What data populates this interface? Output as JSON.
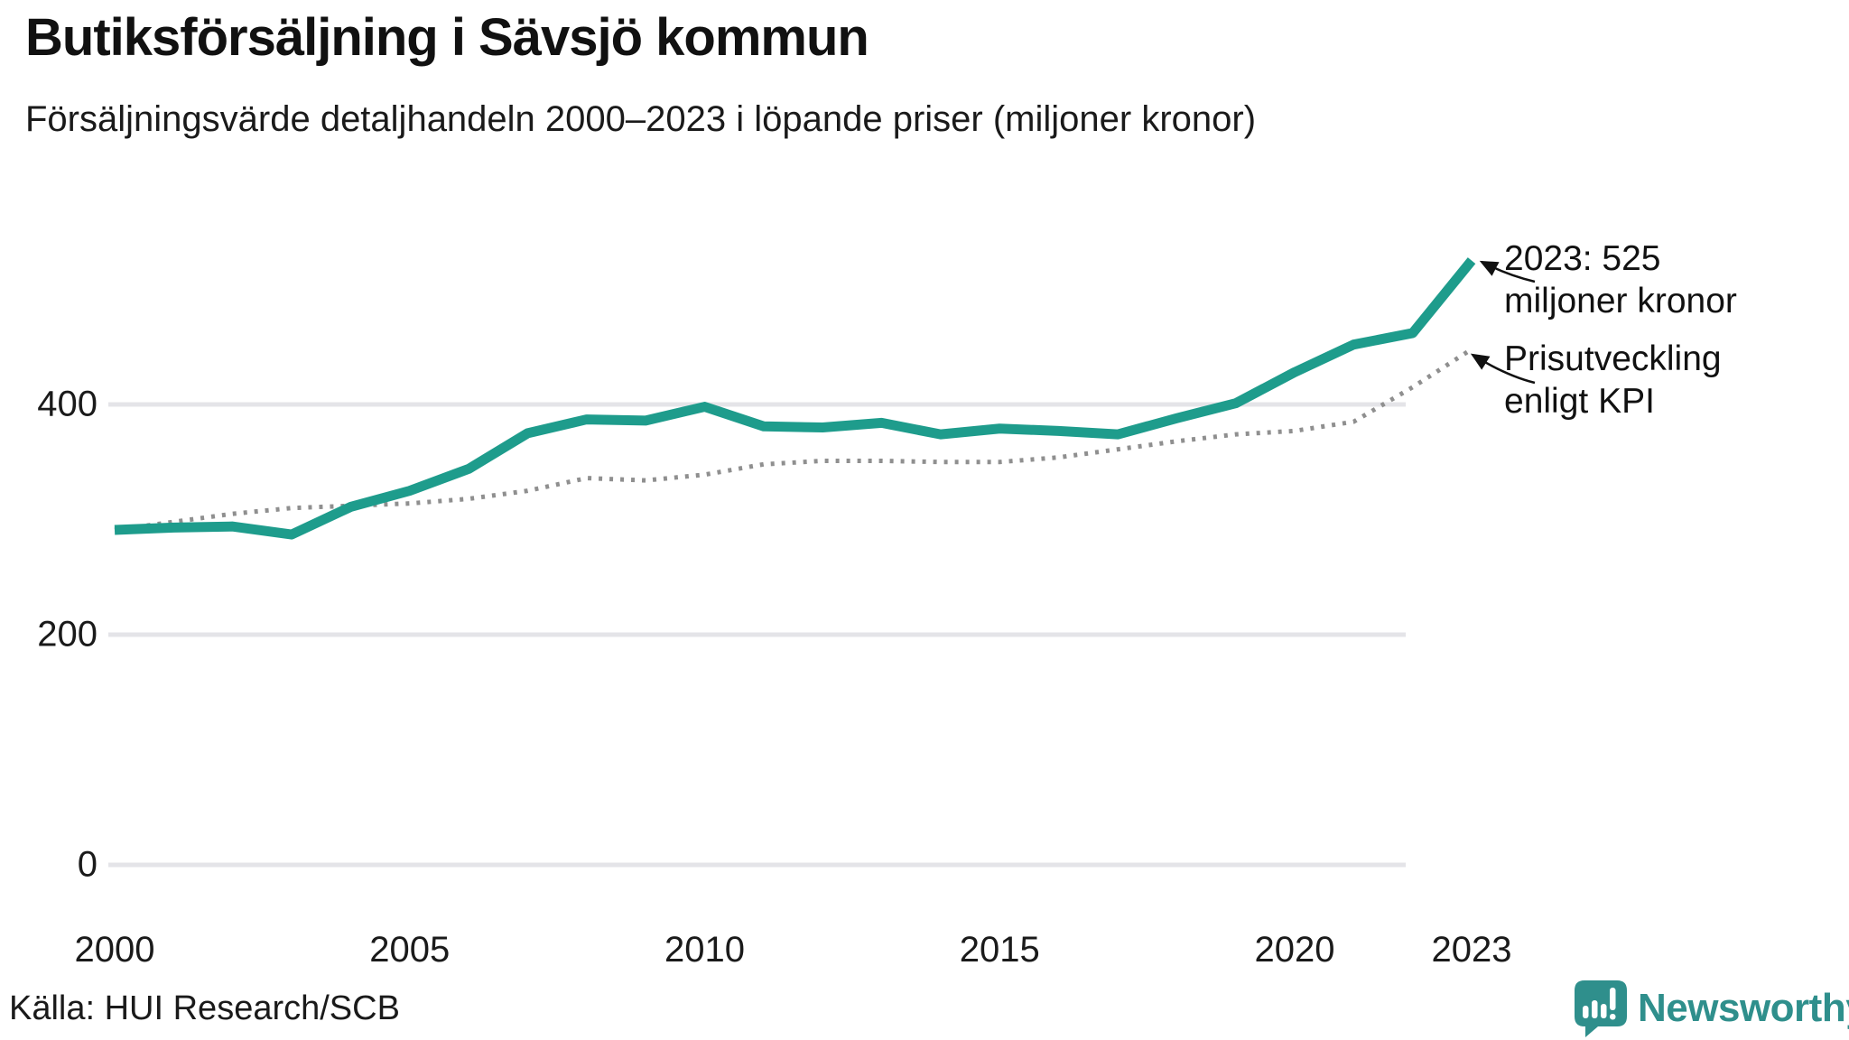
{
  "header": {
    "title": "Butiksförsäljning i Sävsjö kommun",
    "subtitle": "Försäljningsvärde detaljhandeln 2000–2023 i löpande priser (miljoner kronor)"
  },
  "annotations": {
    "latest": {
      "line1": "2023: 525",
      "line2": "miljoner kronor"
    },
    "kpi": {
      "line1": "Prisutveckling",
      "line2": "enligt KPI"
    }
  },
  "footer": {
    "source": "Källa: HUI Research/SCB",
    "logo_text": "Newsworthy"
  },
  "colors": {
    "sales_line": "#1e9c8c",
    "kpi_line": "#8f8f8f",
    "gridline": "#e4e4e8",
    "arrow": "#111111",
    "logo": "#2f8f8c"
  },
  "chart_data": {
    "type": "line",
    "title": "Butiksförsäljning i Sävsjö kommun",
    "subtitle": "Försäljningsvärde detaljhandeln 2000–2023 i löpande priser (miljoner kronor)",
    "xlabel": "",
    "ylabel": "miljoner kronor",
    "x": [
      2000,
      2001,
      2002,
      2003,
      2004,
      2005,
      2006,
      2007,
      2008,
      2009,
      2010,
      2011,
      2012,
      2013,
      2014,
      2015,
      2016,
      2017,
      2018,
      2019,
      2020,
      2021,
      2022,
      2023
    ],
    "series": [
      {
        "name": "Försäljningsvärde i löpande priser",
        "style": "solid",
        "color": "#1e9c8c",
        "values": [
          291,
          293,
          294,
          287,
          311,
          325,
          344,
          375,
          387,
          386,
          398,
          381,
          380,
          384,
          374,
          379,
          377,
          374,
          388,
          401,
          428,
          452,
          462,
          525
        ]
      },
      {
        "name": "Prisutveckling enligt KPI",
        "style": "dotted",
        "color": "#8f8f8f",
        "values": [
          291,
          298,
          305,
          310,
          312,
          314,
          318,
          325,
          336,
          334,
          339,
          348,
          351,
          351,
          350,
          350,
          354,
          361,
          368,
          374,
          377,
          385,
          415,
          448
        ]
      }
    ],
    "highlight_point": {
      "year": 2023,
      "value": 525,
      "label": "2023: 525 miljoner kronor"
    },
    "yticks": [
      "0",
      "200",
      "400"
    ],
    "xticks": [
      "2000",
      "2005",
      "2010",
      "2015",
      "2020",
      "2023"
    ],
    "ylim": [
      0,
      580
    ],
    "xlim": [
      2000,
      2023
    ],
    "grid": "horizontal",
    "legend": "inline-annotations"
  }
}
